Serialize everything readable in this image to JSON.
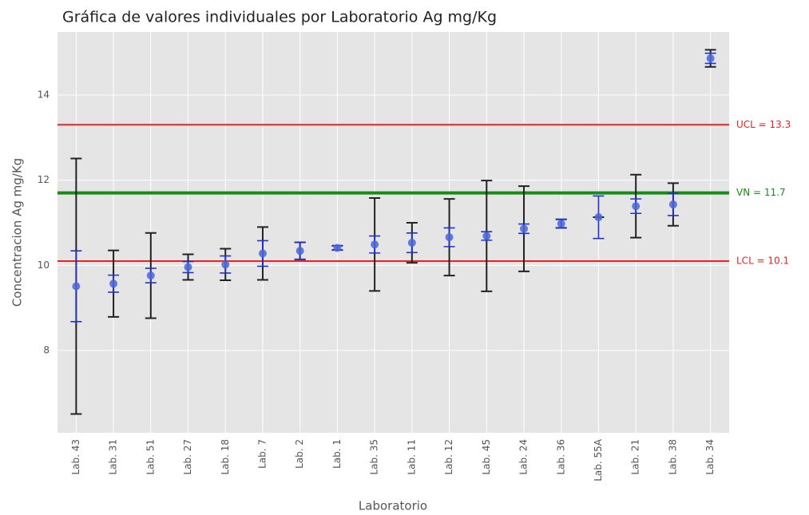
{
  "chart_data": {
    "type": "errorbar",
    "title": "Gráfica de valores individuales por Laboratorio Ag mg/Kg",
    "x_label": "Laboratorio",
    "y_label": "Concentracion Ag mg/Kg",
    "categories": [
      "Lab. 43",
      "Lab. 31",
      "Lab. 51",
      "Lab. 27",
      "Lab. 18",
      "Lab. 7",
      "Lab. 2",
      "Lab. 1",
      "Lab. 35",
      "Lab. 11",
      "Lab. 12",
      "Lab. 45",
      "Lab. 24",
      "Lab. 36",
      "Lab. 55A",
      "Lab. 21",
      "Lab. 38",
      "Lab. 34"
    ],
    "values": [
      9.51,
      9.57,
      9.76,
      9.96,
      10.02,
      10.28,
      10.34,
      10.41,
      10.49,
      10.53,
      10.66,
      10.69,
      10.86,
      10.98,
      11.13,
      11.39,
      11.43,
      14.86
    ],
    "errors": [
      3.0,
      0.78,
      1.0,
      0.3,
      0.37,
      0.62,
      0.2,
      0.05,
      1.09,
      0.47,
      0.9,
      1.3,
      1.0,
      0.1,
      0,
      0.74,
      0.5,
      0.2
    ],
    "inner_errors": [
      0.83,
      0.2,
      0.17,
      0.13,
      0.2,
      0.3,
      0.2,
      0.05,
      0.2,
      0.23,
      0.22,
      0.1,
      0.11,
      0.1,
      0.5,
      0.17,
      0.26,
      0.12
    ],
    "marker_color": "#4a66d6",
    "error_color": "#222222",
    "inner_error_color": "#2233cc",
    "ylim": [
      6.07,
      15.48
    ],
    "yticks": [
      8,
      10,
      12,
      14
    ],
    "grid": true,
    "reference_lines": [
      {
        "label": "UCL = 13.3",
        "value": 13.3,
        "color": "#ee2222",
        "width": 2
      },
      {
        "label": "VN = 11.7",
        "value": 11.7,
        "color": "#1a8a1a",
        "width": 4
      },
      {
        "label": "LCL = 10.1",
        "value": 10.1,
        "color": "#ee2222",
        "width": 2
      }
    ]
  }
}
